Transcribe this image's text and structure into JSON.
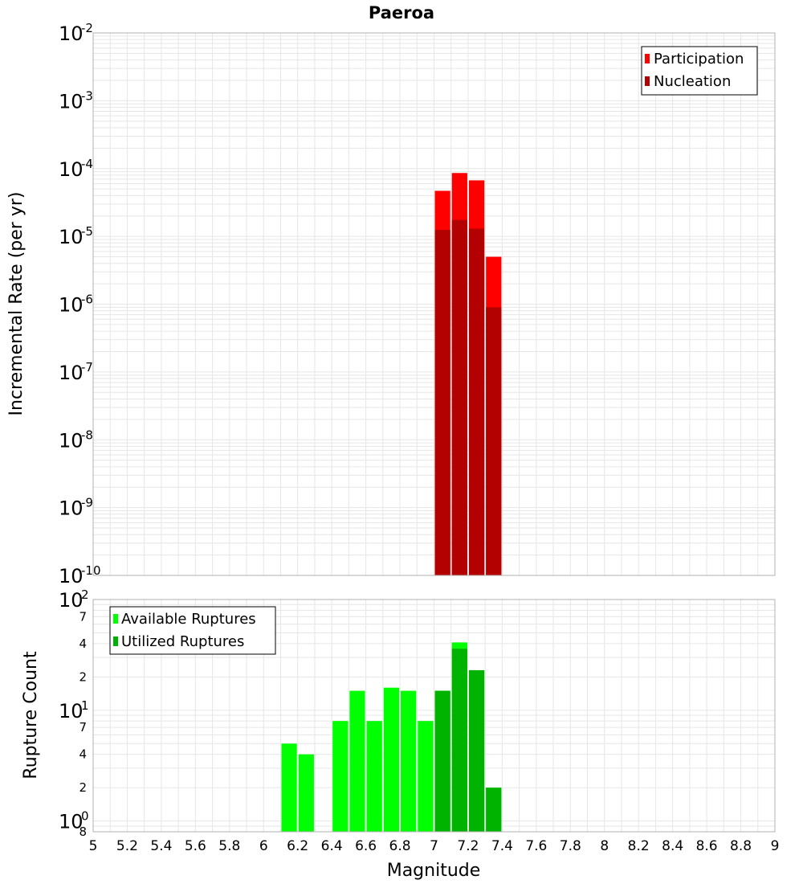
{
  "colors": {
    "participation": "#ff0000",
    "nucleation": "#b30000",
    "available": "#00ff00",
    "utilized": "#00b300",
    "grid": "#e6e6e6",
    "frame": "#b0b0b0"
  },
  "chart_data": [
    {
      "type": "bar",
      "title": "Paeroa",
      "xlabel": "Magnitude",
      "ylabel": "Incremental Rate (per yr)",
      "yscale": "log",
      "ylim": [
        1e-10,
        0.01
      ],
      "xlim": [
        5,
        9
      ],
      "bin_width": 0.1,
      "grid": true,
      "legend_position": "top-right",
      "y_tick_bases": [
        "10",
        "10",
        "10",
        "10",
        "10",
        "10",
        "10",
        "10",
        "10"
      ],
      "y_tick_exponents": [
        "-2",
        "-3",
        "-4",
        "-5",
        "-6",
        "-7",
        "-8",
        "-9",
        "-10"
      ],
      "series": [
        {
          "name": "Participation",
          "color": "#ff0000",
          "x": [
            7.05,
            7.15,
            7.25,
            7.35
          ],
          "values": [
            4.7e-05,
            8.6e-05,
            6.7e-05,
            5e-06
          ]
        },
        {
          "name": "Nucleation",
          "color": "#b30000",
          "x": [
            7.05,
            7.15,
            7.25,
            7.35
          ],
          "values": [
            1.25e-05,
            1.75e-05,
            1.3e-05,
            9e-07
          ]
        }
      ]
    },
    {
      "type": "bar",
      "xlabel": "Magnitude",
      "ylabel": "Rupture Count",
      "yscale": "log",
      "ylim": [
        0.8,
        100
      ],
      "xlim": [
        5,
        9
      ],
      "bin_width": 0.1,
      "grid": true,
      "legend_position": "top-left",
      "x_tick_labels": [
        "5",
        "5.2",
        "5.4",
        "5.6",
        "5.8",
        "6",
        "6.2",
        "6.4",
        "6.6",
        "6.8",
        "7",
        "7.2",
        "7.4",
        "7.6",
        "7.8",
        "8",
        "8.2",
        "8.4",
        "8.6",
        "8.8",
        "9"
      ],
      "y_major_ticks": [
        {
          "base": "10",
          "exp": "2",
          "value": 100
        },
        {
          "base": "10",
          "exp": "1",
          "value": 10
        },
        {
          "base": "10",
          "exp": "0",
          "value": 1
        }
      ],
      "y_minor_ticks": [
        {
          "label": "7",
          "value": 70
        },
        {
          "label": "4",
          "value": 40
        },
        {
          "label": "2",
          "value": 20
        },
        {
          "label": "7",
          "value": 7
        },
        {
          "label": "4",
          "value": 4
        },
        {
          "label": "2",
          "value": 2
        },
        {
          "label": "8",
          "value": 0.8
        }
      ],
      "series": [
        {
          "name": "Available Ruptures",
          "color": "#00ff00",
          "x": [
            6.15,
            6.25,
            6.45,
            6.55,
            6.65,
            6.75,
            6.85,
            6.95,
            7.05,
            7.15,
            7.25,
            7.35
          ],
          "values": [
            5,
            4,
            8,
            15,
            8,
            16,
            15,
            8,
            15,
            41,
            23,
            2
          ]
        },
        {
          "name": "Utilized Ruptures",
          "color": "#00b300",
          "x": [
            7.05,
            7.15,
            7.25,
            7.35
          ],
          "values": [
            15,
            36,
            23,
            2
          ]
        }
      ]
    }
  ]
}
